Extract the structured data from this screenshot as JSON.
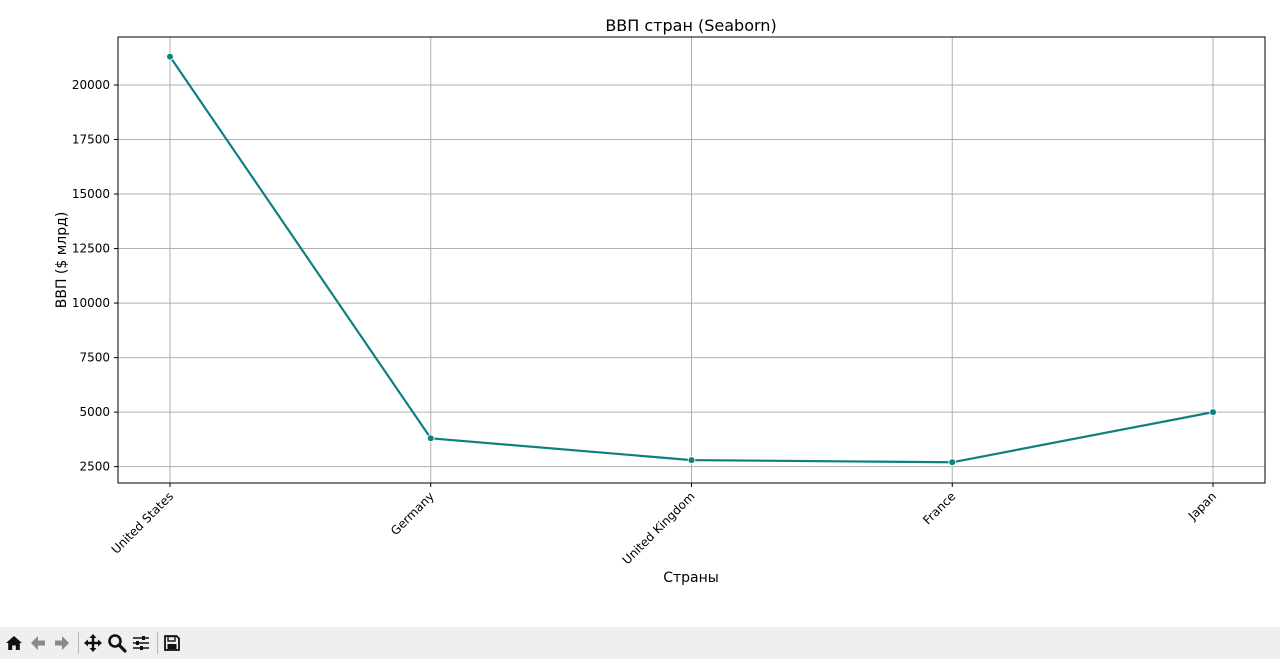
{
  "chart_data": {
    "type": "line",
    "title": "ВВП стран (Seaborn)",
    "xlabel": "Страны",
    "ylabel": "ВВП ($ млрд)",
    "categories": [
      "United States",
      "Germany",
      "United Kingdom",
      "France",
      "Japan"
    ],
    "values": [
      21300,
      3800,
      2800,
      2700,
      5000
    ],
    "yticks": [
      2500,
      5000,
      7500,
      10000,
      12500,
      15000,
      17500,
      20000
    ],
    "ylim": [
      1750,
      22200
    ],
    "grid": true,
    "color": "#0f8080"
  },
  "toolbar": {
    "buttons": [
      "home-icon",
      "back-icon",
      "forward-icon",
      "pan-icon",
      "zoom-icon",
      "configure-icon",
      "save-icon"
    ]
  }
}
